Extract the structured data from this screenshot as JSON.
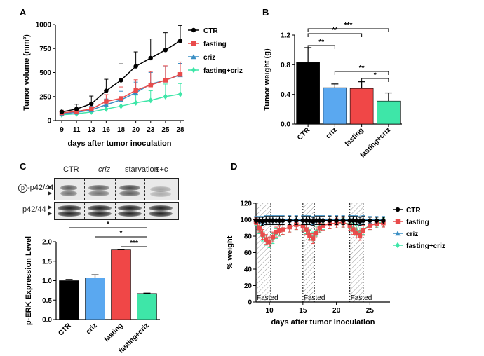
{
  "panel_labels": {
    "a": "A",
    "b": "B",
    "c": "C",
    "d": "D"
  },
  "colors": {
    "ctr": "#000000",
    "fasting": "#e94b4b",
    "criz": "#3b8fc4",
    "fasting_criz": "#3ee6a8",
    "criz_bar": "#5aa8f0",
    "fasting_bar": "#f04747"
  },
  "chart_data": [
    {
      "id": "A",
      "type": "line",
      "xlabel": "days after tumor inoculation",
      "ylabel": "Tumor volume (mm³)",
      "ylim": [
        0,
        1000
      ],
      "yticks": [
        "0",
        "250",
        "500",
        "750",
        "1000"
      ],
      "x": [
        "9",
        "11",
        "13",
        "16",
        "18",
        "20",
        "23",
        "25",
        "28"
      ],
      "legend_position": "right",
      "series": [
        {
          "name": "CTR",
          "color": "#000000",
          "marker": "circle",
          "values": [
            90,
            120,
            175,
            310,
            420,
            565,
            650,
            735,
            830
          ],
          "errors": [
            30,
            50,
            80,
            120,
            170,
            150,
            200,
            180,
            160
          ]
        },
        {
          "name": "fasting",
          "color": "#e94b4b",
          "marker": "square",
          "values": [
            80,
            95,
            120,
            200,
            230,
            315,
            370,
            420,
            480
          ],
          "errors": [
            25,
            30,
            50,
            70,
            120,
            110,
            140,
            150,
            130
          ]
        },
        {
          "name": "criz",
          "color": "#3b8fc4",
          "marker": "triangle",
          "values": [
            70,
            85,
            110,
            165,
            215,
            290,
            380,
            420,
            475
          ],
          "errors": [
            25,
            30,
            40,
            60,
            90,
            110,
            120,
            140,
            120
          ]
        },
        {
          "name": "fasting+criz",
          "color": "#3ee6a8",
          "marker": "diamond",
          "values": [
            60,
            70,
            90,
            120,
            150,
            185,
            210,
            250,
            275
          ],
          "errors": [
            20,
            20,
            30,
            40,
            60,
            80,
            100,
            130,
            110
          ]
        }
      ]
    },
    {
      "id": "B",
      "type": "bar",
      "xlabel": "",
      "ylabel": "Tumor weight (g)",
      "ylim": [
        0,
        1.2
      ],
      "yticks": [
        "0.0",
        "0.4",
        "0.8",
        "1.2"
      ],
      "categories": [
        "CTR",
        "criz",
        "fasting",
        "fasting+criz"
      ],
      "values": [
        0.83,
        0.49,
        0.48,
        0.31
      ],
      "errors": [
        0.2,
        0.05,
        0.09,
        0.11
      ],
      "bar_colors": [
        "#000000",
        "#5aa8f0",
        "#f04747",
        "#3ee6a8"
      ],
      "significance": [
        {
          "from": 0,
          "to": 1,
          "label": "**"
        },
        {
          "from": 0,
          "to": 2,
          "label": "**"
        },
        {
          "from": 0,
          "to": 3,
          "label": "***"
        },
        {
          "from": 1,
          "to": 3,
          "label": "**"
        },
        {
          "from": 2,
          "to": 3,
          "label": "*"
        }
      ]
    },
    {
      "id": "C",
      "type": "bar",
      "xlabel": "",
      "ylabel": "p-ERK Expression Level",
      "ylim": [
        0,
        2.0
      ],
      "yticks": [
        "0.0",
        "0.5",
        "1.0",
        "1.5",
        "2.0"
      ],
      "categories": [
        "CTR",
        "criz",
        "fasting",
        "fasting+criz"
      ],
      "values": [
        1.0,
        1.07,
        1.79,
        0.67
      ],
      "errors": [
        0.03,
        0.08,
        0.01,
        0.01
      ],
      "bar_colors": [
        "#000000",
        "#5aa8f0",
        "#f04747",
        "#3ee6a8"
      ],
      "significance": [
        {
          "from": 0,
          "to": 3,
          "label": "*"
        },
        {
          "from": 1,
          "to": 3,
          "label": "*"
        },
        {
          "from": 2,
          "to": 3,
          "label": "***"
        }
      ]
    },
    {
      "id": "D",
      "type": "line",
      "xlabel": "days after tumor inoculation",
      "ylabel": "% weight",
      "ylim": [
        0,
        120
      ],
      "xlim": [
        8,
        28
      ],
      "yticks": [
        "0",
        "20",
        "40",
        "60",
        "80",
        "100",
        "120"
      ],
      "xticks": [
        "10",
        "15",
        "20",
        "25"
      ],
      "fasted_periods": [
        [
          8,
          10.2
        ],
        [
          15,
          16.7
        ],
        [
          22,
          24
        ]
      ],
      "fasted_label": "Fasted",
      "legend_position": "right",
      "series": [
        {
          "name": "CTR",
          "color": "#000000",
          "marker": "circle",
          "x": [
            8,
            8.5,
            9,
            9.5,
            10,
            10.5,
            11,
            11.5,
            12,
            13,
            14,
            15,
            15.5,
            16,
            16.5,
            17,
            17.5,
            18,
            19,
            20,
            21,
            22,
            22.5,
            23,
            23.5,
            24,
            25,
            26,
            27
          ],
          "values": [
            99,
            99,
            98,
            99,
            99,
            99,
            99,
            99,
            99,
            99,
            99,
            99,
            99,
            99,
            98,
            99,
            99,
            99,
            99,
            99,
            99,
            99,
            99,
            99,
            98,
            99,
            99,
            99,
            99
          ],
          "errors": [
            4,
            4,
            5,
            5,
            5,
            5,
            5,
            5,
            5,
            5,
            5,
            5,
            5,
            5,
            5,
            5,
            5,
            5,
            5,
            5,
            5,
            5,
            5,
            5,
            5,
            5,
            4,
            4,
            4
          ]
        },
        {
          "name": "fasting",
          "color": "#e94b4b",
          "marker": "square",
          "x": [
            8,
            8.5,
            9,
            9.5,
            10,
            10.5,
            11,
            11.5,
            12,
            13,
            14,
            15,
            15.5,
            16,
            16.5,
            17,
            17.5,
            18,
            19,
            20,
            21,
            22,
            22.5,
            23,
            23.5,
            24,
            25,
            26,
            27
          ],
          "values": [
            98,
            90,
            82,
            76,
            73,
            79,
            85,
            87,
            88,
            91,
            94,
            92,
            88,
            81,
            77,
            84,
            90,
            93,
            95,
            96,
            97,
            93,
            88,
            84,
            81,
            87,
            93,
            95,
            96
          ],
          "errors": [
            4,
            5,
            6,
            6,
            6,
            6,
            6,
            6,
            6,
            6,
            6,
            6,
            6,
            6,
            6,
            6,
            6,
            6,
            6,
            6,
            6,
            6,
            6,
            6,
            6,
            6,
            5,
            5,
            5
          ]
        },
        {
          "name": "criz",
          "color": "#3b8fc4",
          "marker": "triangle",
          "x": [
            8,
            8.5,
            9,
            9.5,
            10,
            10.5,
            11,
            11.5,
            12,
            13,
            14,
            15,
            15.5,
            16,
            16.5,
            17,
            17.5,
            18,
            19,
            20,
            21,
            22,
            22.5,
            23,
            23.5,
            24,
            25,
            26,
            27
          ],
          "values": [
            100,
            100,
            99,
            100,
            100,
            100,
            100,
            100,
            100,
            100,
            100,
            100,
            100,
            100,
            99,
            100,
            100,
            100,
            100,
            100,
            100,
            100,
            100,
            100,
            99,
            100,
            100,
            100,
            100
          ],
          "errors": [
            4,
            4,
            5,
            5,
            5,
            5,
            5,
            5,
            5,
            5,
            5,
            5,
            5,
            5,
            5,
            5,
            5,
            5,
            5,
            5,
            5,
            5,
            5,
            5,
            5,
            5,
            4,
            4,
            4
          ]
        },
        {
          "name": "fasting+criz",
          "color": "#3ee6a8",
          "marker": "diamond",
          "x": [
            8,
            8.5,
            9,
            9.5,
            10,
            10.5,
            11,
            11.5,
            12,
            13,
            14,
            15,
            15.5,
            16,
            16.5,
            17,
            17.5,
            18,
            19,
            20,
            21,
            22,
            22.5,
            23,
            23.5,
            24,
            25,
            26,
            27
          ],
          "values": [
            97,
            88,
            80,
            75,
            72,
            77,
            83,
            86,
            88,
            91,
            94,
            93,
            89,
            82,
            79,
            86,
            91,
            94,
            95,
            96,
            96,
            95,
            90,
            87,
            84,
            88,
            93,
            96,
            97
          ],
          "errors": [
            4,
            5,
            6,
            6,
            6,
            6,
            6,
            6,
            6,
            6,
            6,
            6,
            6,
            6,
            6,
            6,
            6,
            6,
            6,
            6,
            6,
            6,
            6,
            6,
            6,
            6,
            5,
            5,
            5
          ]
        }
      ]
    }
  ],
  "blot": {
    "lanes": [
      "CTR",
      "criz",
      "starvation",
      "s+c"
    ],
    "row1_label_circle": "p",
    "row1_label_rest": "-p42/44",
    "row2_label": "p42/44"
  }
}
